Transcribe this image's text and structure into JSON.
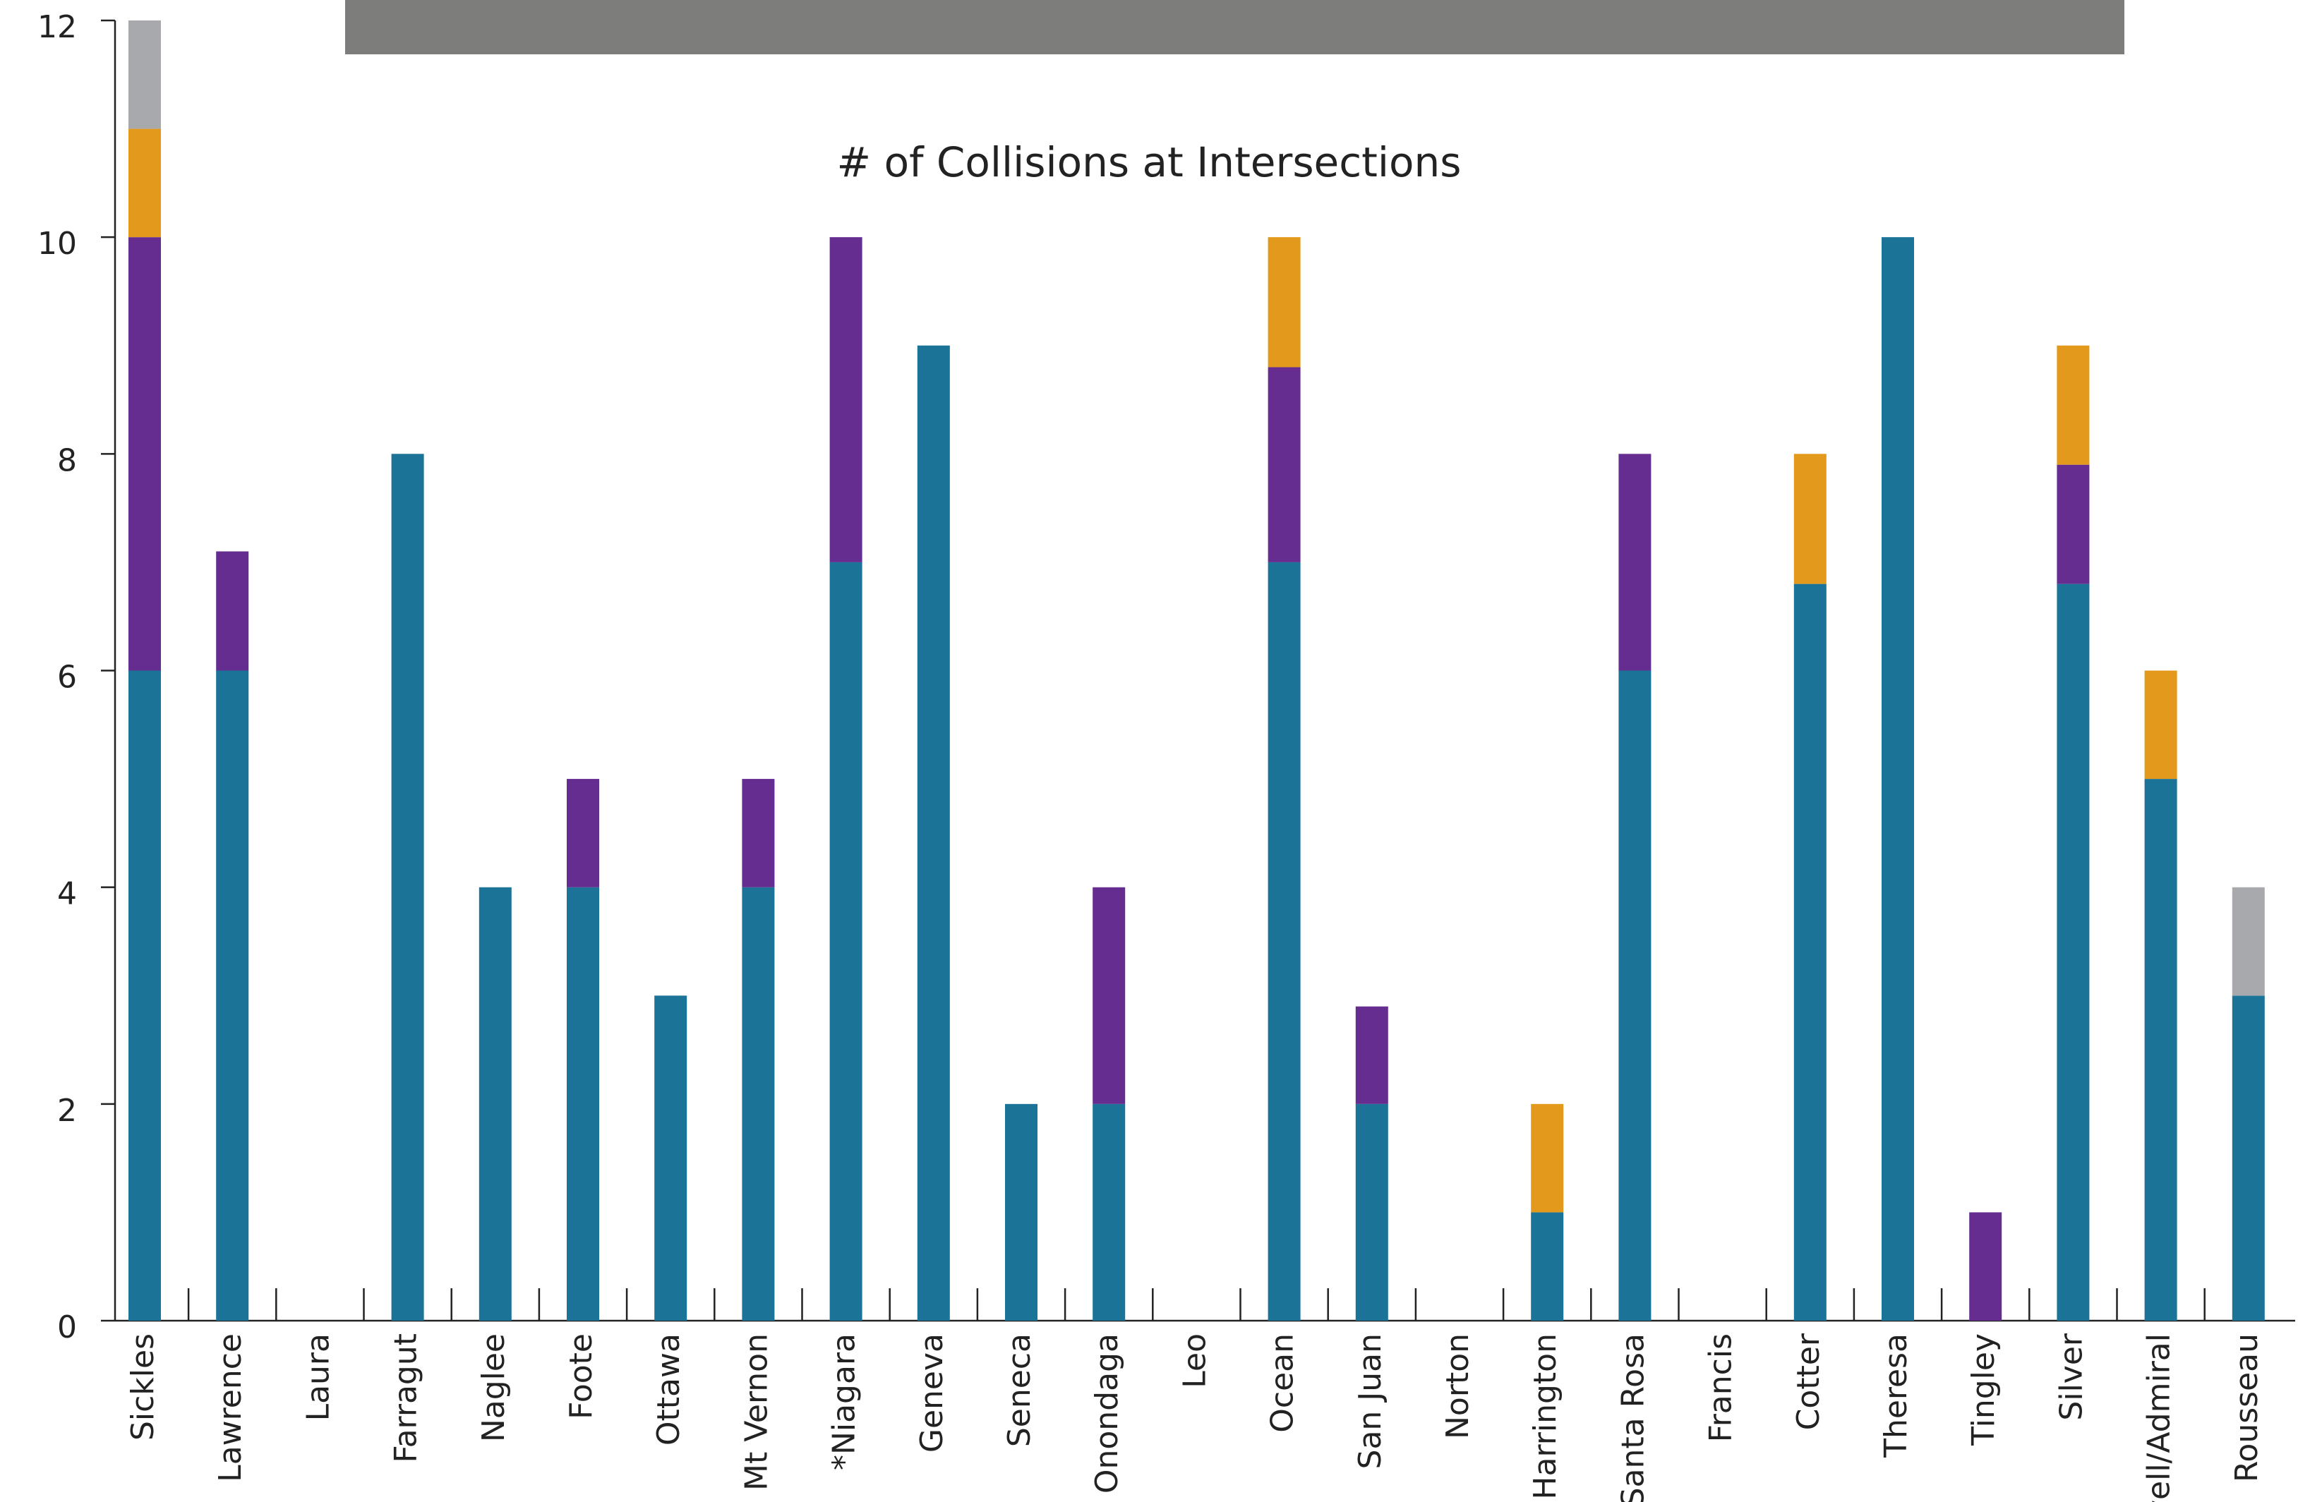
{
  "chart_data": {
    "type": "stacked_bar",
    "title": "# of Collisions at Intersections",
    "categories": [
      "Sickles",
      "Lawrence",
      "Laura",
      "Farragut",
      "Naglee",
      "Foote",
      "Ottawa",
      "Mt Vernon",
      "*Niagara",
      "Geneva",
      "Seneca",
      "Onondaga",
      "Leo",
      "Ocean",
      "San Juan",
      "Norton",
      "Harrington",
      "Santa Rosa",
      "Francis",
      "Cotter",
      "Theresa",
      "Tingley",
      "Silver",
      "Lyell/Admiral",
      "Rousseau"
    ],
    "series": [
      {
        "color": "#1b7398",
        "values": [
          6,
          6,
          0,
          8,
          4,
          4,
          3,
          4,
          7,
          9,
          2,
          2,
          0,
          7,
          2,
          0,
          1,
          6,
          0,
          6.8,
          10,
          0,
          6.8,
          5,
          3
        ]
      },
      {
        "color": "#662d91",
        "values": [
          4,
          1.1,
          0,
          0,
          0,
          1,
          0,
          1,
          3,
          0,
          0,
          2,
          0,
          1.8,
          0.9,
          0,
          0,
          2,
          0,
          0,
          0,
          1,
          1.1,
          0,
          0
        ]
      },
      {
        "color": "#e39a1c",
        "values": [
          1,
          0,
          0,
          0,
          0,
          0,
          0,
          0,
          0,
          0,
          0,
          0,
          0,
          1.2,
          0,
          0,
          1,
          0,
          0,
          1.2,
          0,
          0,
          1.1,
          1,
          0
        ]
      },
      {
        "color": "#a7a9ac",
        "values": [
          1,
          0,
          0,
          0,
          0,
          0,
          0,
          0,
          0,
          0,
          0,
          0,
          0,
          0,
          0,
          0,
          0,
          0,
          0,
          0,
          0,
          0,
          0,
          0,
          1
        ]
      }
    ],
    "ylim": [
      0,
      12
    ],
    "yticks": [
      0,
      2,
      4,
      6,
      8,
      10,
      12
    ],
    "grid": false
  }
}
